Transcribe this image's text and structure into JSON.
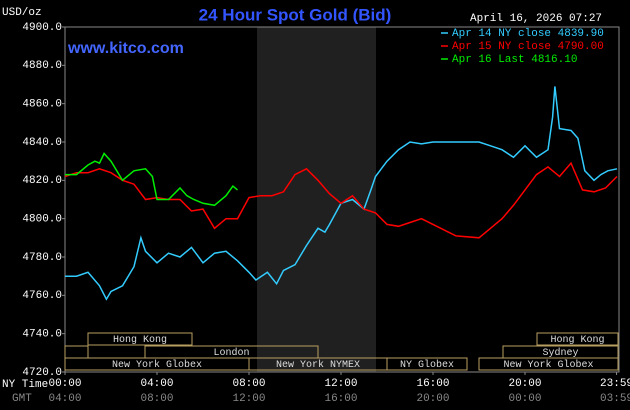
{
  "chart_data": {
    "type": "line",
    "title": "24 Hour Spot Gold (Bid)",
    "timestamp": "April 16, 2026 07:27",
    "watermark": "www.kitco.com",
    "y_label": "USD/oz",
    "x_row_labels": [
      "NY Time",
      "GMT"
    ],
    "xlim": [
      0,
      24
    ],
    "xticks": [
      {
        "value": 0,
        "label": "00:00"
      },
      {
        "value": 4,
        "label": "04:00"
      },
      {
        "value": 8,
        "label": "08:00"
      },
      {
        "value": 12,
        "label": "12:00"
      },
      {
        "value": 16,
        "label": "16:00"
      },
      {
        "value": 20,
        "label": "20:00"
      },
      {
        "value": 23.98,
        "label": "23:59"
      }
    ],
    "gmt_labels": [
      "04:00",
      "08:00",
      "12:00",
      "16:00",
      "20:00",
      "00:00",
      "03:59"
    ],
    "ylim": [
      4720,
      4900
    ],
    "yticks": [
      {
        "value": 4720,
        "label": "4720.0"
      },
      {
        "value": 4740,
        "label": "4740.0"
      },
      {
        "value": 4760,
        "label": "4760.0"
      },
      {
        "value": 4780,
        "label": "4780.0"
      },
      {
        "value": 4800,
        "label": "4800.0"
      },
      {
        "value": 4820,
        "label": "4820.0"
      },
      {
        "value": 4840,
        "label": "4840.0"
      },
      {
        "value": 4860,
        "label": "4860.0"
      },
      {
        "value": 4880,
        "label": "4880.0"
      },
      {
        "value": 4900,
        "label": "4900.0"
      }
    ],
    "grid": false,
    "sessions": [
      "Hong Kong",
      "Hong Kong",
      "London",
      "Sydney",
      "New York Globex",
      "New York NYMEX",
      "NY Globex",
      "New York Globex"
    ],
    "series": [
      {
        "name": "Apr 14 NY close 4839.90",
        "color": "#33ccff",
        "x": [
          0,
          0.5,
          1,
          1.5,
          1.8,
          2,
          2.5,
          3,
          3.3,
          3.5,
          4,
          4.5,
          5,
          5.5,
          6,
          6.5,
          7,
          7.5,
          8,
          8.3,
          8.8,
          9.2,
          9.5,
          10,
          10.5,
          11,
          11.3,
          11.5,
          12,
          12.5,
          13,
          13.3,
          13.5,
          14,
          14.5,
          15,
          15.5,
          16,
          17,
          18,
          18.5,
          19,
          19.5,
          20,
          20.5,
          21,
          21.2,
          21.3,
          21.5,
          22,
          22.3,
          22.6,
          23,
          23.3,
          23.6,
          24
        ],
        "values": [
          4770,
          4770,
          4772,
          4765,
          4758,
          4762,
          4765,
          4775,
          4790,
          4783,
          4777,
          4782,
          4780,
          4785,
          4777,
          4782,
          4783,
          4778,
          4772,
          4768,
          4772,
          4766,
          4773,
          4776,
          4786,
          4795,
          4793,
          4797,
          4808,
          4810,
          4805,
          4815,
          4822,
          4830,
          4836,
          4840,
          4839,
          4840,
          4840,
          4840,
          4838,
          4836,
          4832,
          4838,
          4832,
          4836,
          4853,
          4869,
          4847,
          4846,
          4842,
          4825,
          4820,
          4823,
          4825,
          4826
        ]
      },
      {
        "name": "Apr 15 NY close 4790.00",
        "color": "#ff0000",
        "x": [
          0,
          0.5,
          1,
          1.5,
          2,
          2.5,
          3,
          3.5,
          4,
          4.5,
          5,
          5.5,
          6,
          6.3,
          6.5,
          7,
          7.5,
          8,
          8.5,
          9,
          9.5,
          10,
          10.5,
          11,
          11.5,
          12,
          12.5,
          13,
          13.5,
          14,
          14.5,
          15,
          15.5,
          16,
          17,
          18,
          18.5,
          19,
          19.5,
          20,
          20.5,
          21,
          21.5,
          22,
          22.5,
          23,
          23.5,
          24
        ],
        "values": [
          4822,
          4824,
          4824,
          4826,
          4824,
          4820,
          4818,
          4810,
          4811,
          4810,
          4810,
          4804,
          4805,
          4799,
          4795,
          4800,
          4800,
          4811,
          4812,
          4812,
          4814,
          4823,
          4826,
          4820,
          4813,
          4808,
          4812,
          4805,
          4803,
          4797,
          4796,
          4798,
          4800,
          4797,
          4791,
          4790,
          4795,
          4800,
          4807,
          4815,
          4823,
          4827,
          4822,
          4829,
          4815,
          4814,
          4816,
          4822
        ]
      },
      {
        "name": "Apr 16 Last 4816.10",
        "color": "#00ee00",
        "x": [
          0,
          0.5,
          1,
          1.3,
          1.5,
          1.7,
          2,
          2.5,
          3,
          3.5,
          3.8,
          4,
          4.5,
          5,
          5.3,
          5.6,
          6,
          6.5,
          7,
          7.3,
          7.5
        ],
        "values": [
          4823,
          4823,
          4828,
          4830,
          4829,
          4834,
          4830,
          4820,
          4825,
          4826,
          4822,
          4810,
          4810,
          4816,
          4812,
          4810,
          4808,
          4807,
          4812,
          4817,
          4815
        ]
      }
    ]
  }
}
